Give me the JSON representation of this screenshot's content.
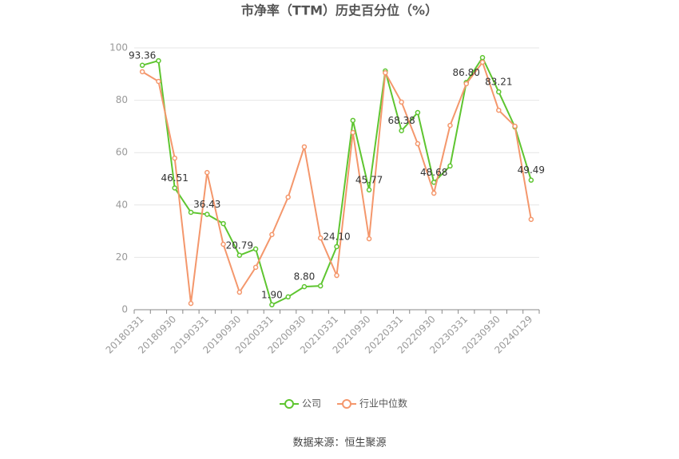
{
  "chart_data": {
    "type": "line",
    "title": "市净率（TTM）历史百分位（%）",
    "source": "数据来源：恒生聚源",
    "categories": [
      "20180331",
      null,
      "20180930",
      null,
      "20190331",
      null,
      "20190930",
      null,
      "20200331",
      null,
      "20200930",
      null,
      "20210331",
      null,
      "20210930",
      null,
      "20220331",
      null,
      "20220930",
      null,
      "20230331",
      null,
      "20230930",
      null,
      "20240129"
    ],
    "series": [
      {
        "name": "公司",
        "color": "#5ec530",
        "values": [
          93.36,
          95.1,
          46.51,
          37.2,
          36.43,
          32.9,
          20.79,
          23.2,
          1.9,
          4.9,
          8.8,
          9.1,
          24.1,
          72.3,
          45.77,
          91.2,
          68.38,
          75.3,
          48.68,
          54.9,
          86.8,
          96.3,
          83.21,
          69.8,
          49.49
        ],
        "value_labels": [
          "93.36",
          null,
          "46.51",
          null,
          "36.43",
          null,
          "20.79",
          null,
          "1.90",
          null,
          "8.80",
          null,
          "24.10",
          null,
          "45.77",
          null,
          "68.38",
          null,
          "48.68",
          null,
          "86.80",
          null,
          "83.21",
          null,
          "49.49"
        ]
      },
      {
        "name": "行业中位数",
        "color": "#f4976c",
        "values": [
          90.9,
          87.2,
          57.9,
          2.4,
          52.4,
          25,
          6.7,
          16.2,
          28.7,
          43,
          62.2,
          27.4,
          13.1,
          67.7,
          27.1,
          90.5,
          79.3,
          63.4,
          44.5,
          70.4,
          86.3,
          94.5,
          76.2,
          70.1,
          34.5
        ]
      }
    ],
    "ylim": [
      0,
      100
    ],
    "yticks": [
      0,
      20,
      40,
      60,
      80,
      100
    ],
    "grid": true
  }
}
